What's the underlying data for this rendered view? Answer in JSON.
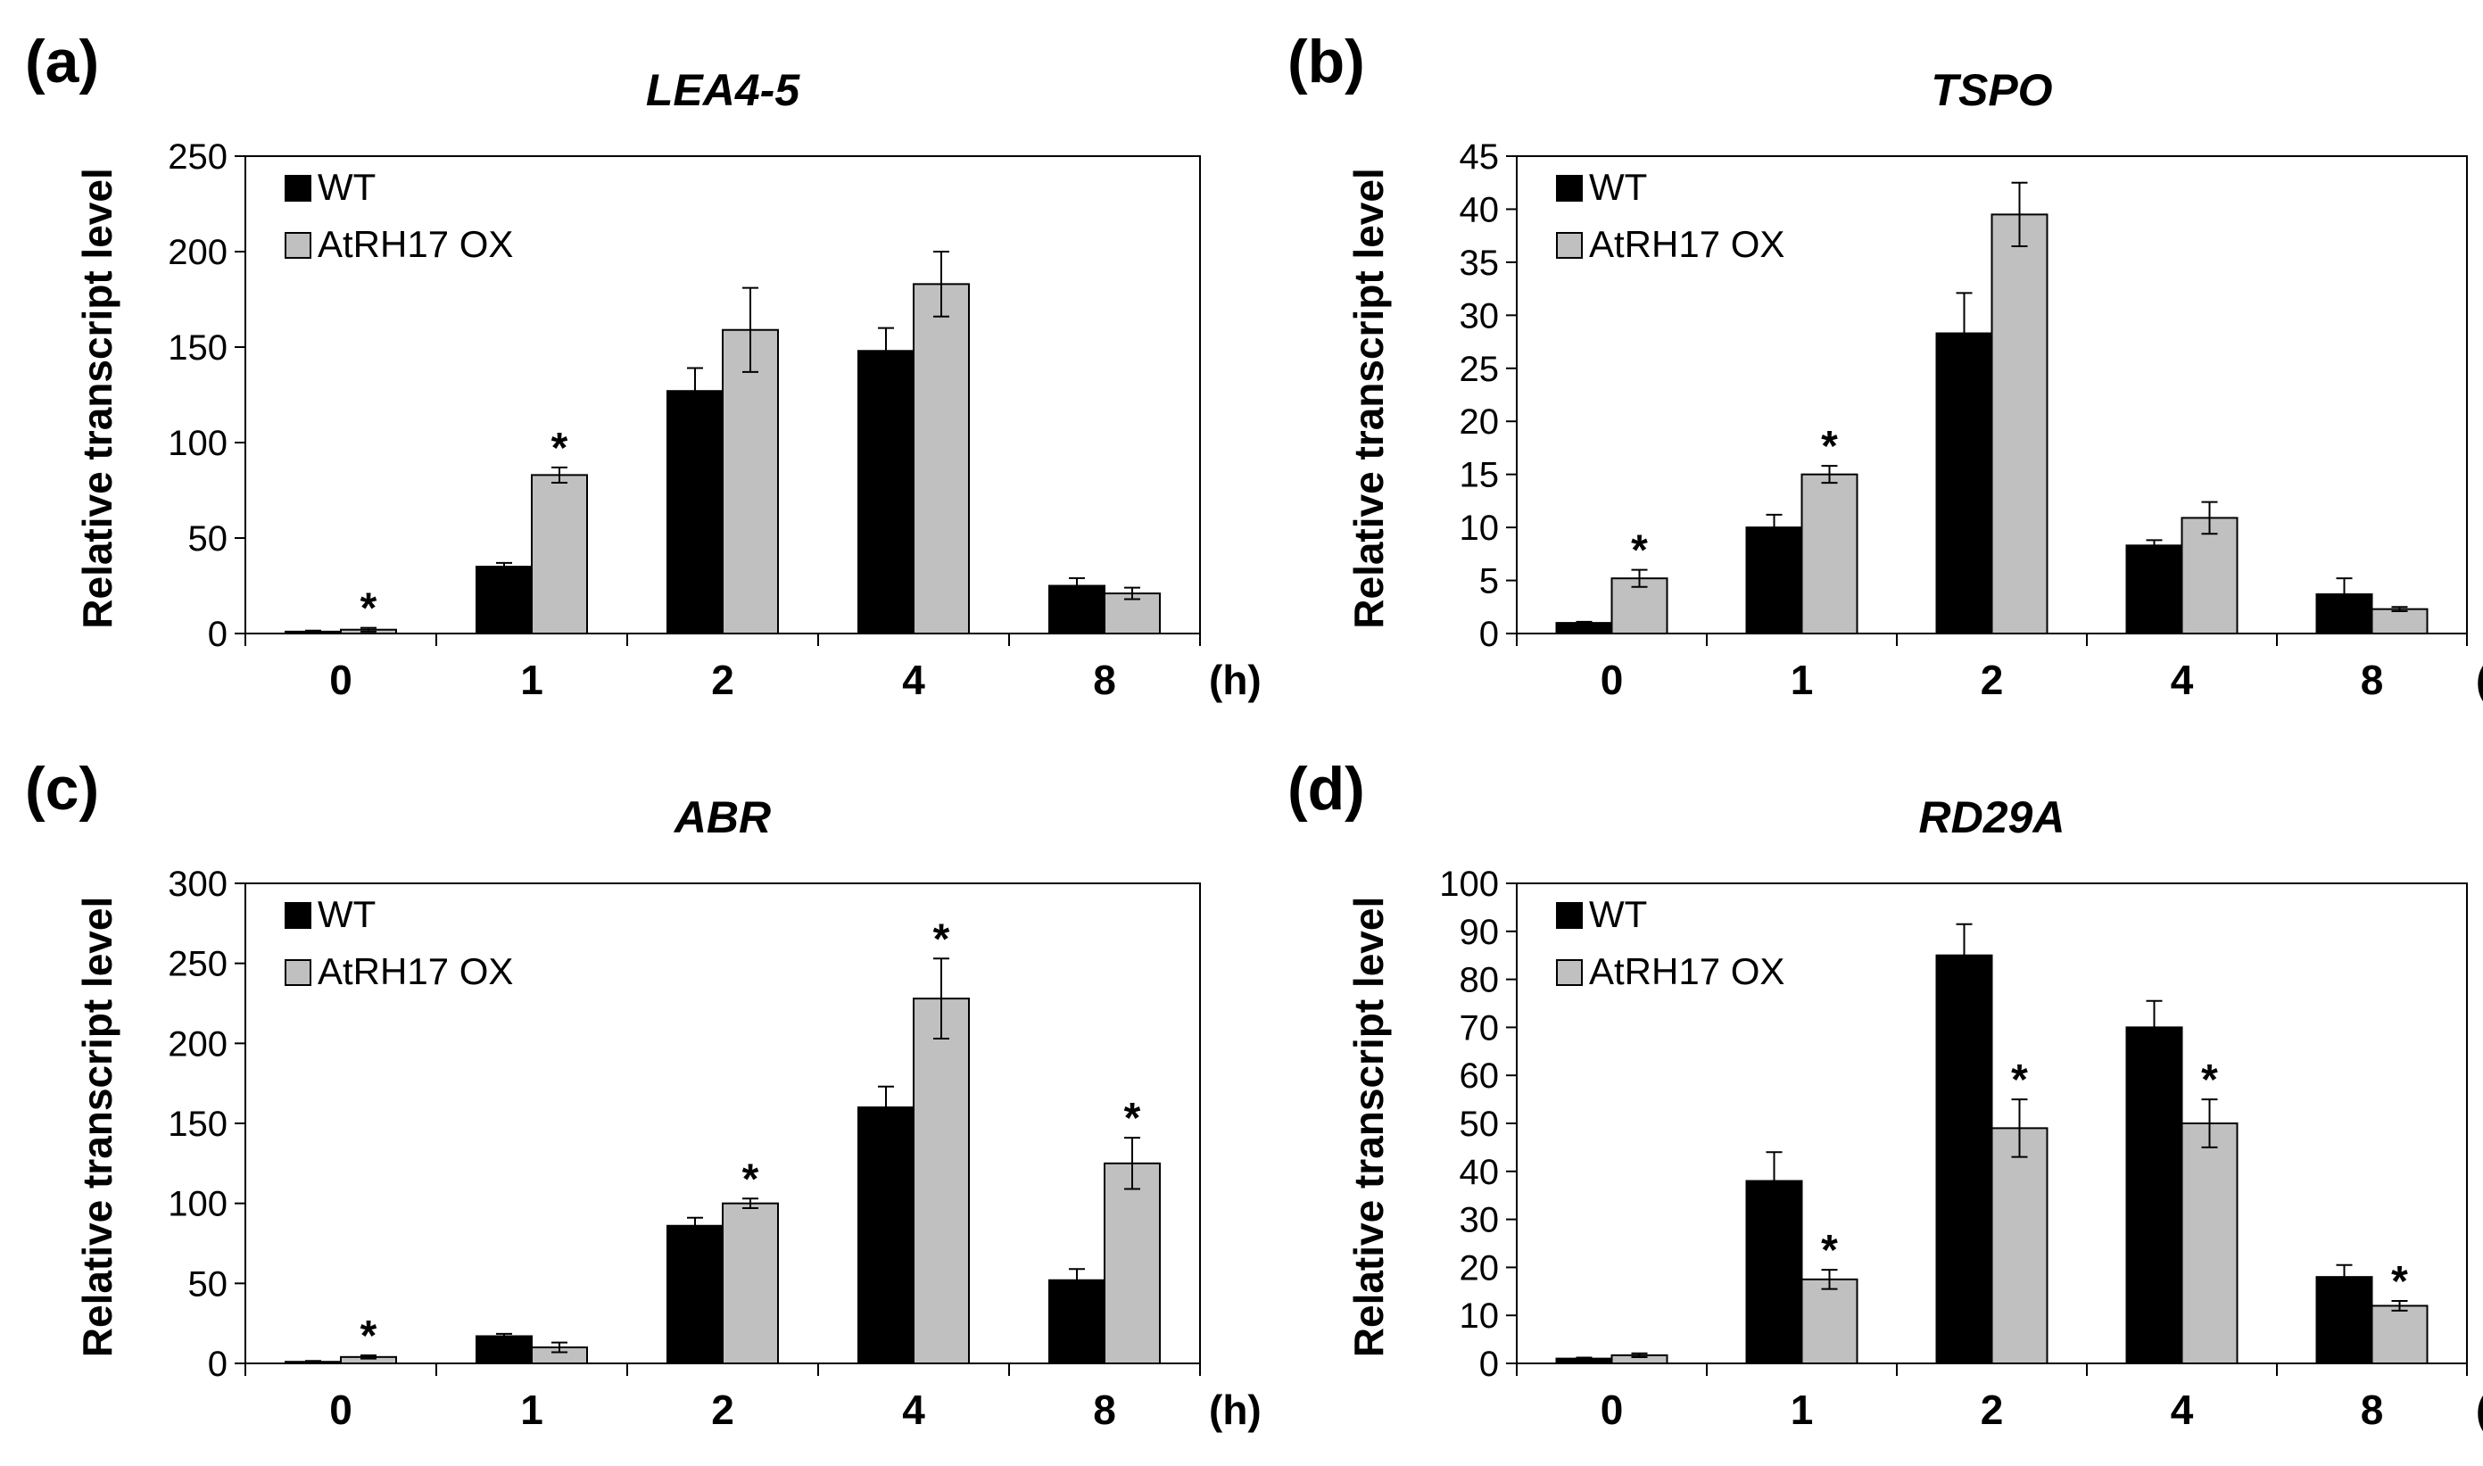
{
  "legend": {
    "wt_label": "WT",
    "ox_label": "AtRH17 OX"
  },
  "colors": {
    "wt": "#000000",
    "ox": "#c0c0c0",
    "axis": "#000000"
  },
  "chart_data": [
    {
      "type": "bar",
      "panel": "(a)",
      "title": "LEA4-5",
      "ylabel": "Relative transcript level",
      "xunit": "(h)",
      "categories": [
        "0",
        "1",
        "2",
        "4",
        "8"
      ],
      "ylim": [
        0,
        250
      ],
      "ytick_step": 50,
      "series": [
        {
          "name": "WT",
          "values": [
            1,
            35,
            127,
            148,
            25
          ],
          "errors": [
            0.5,
            2,
            12,
            12,
            4
          ]
        },
        {
          "name": "AtRH17 OX",
          "values": [
            2,
            83,
            159,
            183,
            21
          ],
          "errors": [
            1,
            4,
            22,
            17,
            3
          ]
        }
      ],
      "significance": [
        [
          false,
          true
        ],
        [
          false,
          true
        ],
        [
          false,
          false
        ],
        [
          false,
          false
        ],
        [
          false,
          false
        ]
      ]
    },
    {
      "type": "bar",
      "panel": "(b)",
      "title": "TSPO",
      "ylabel": "Relative transcript level",
      "xunit": "(h)",
      "categories": [
        "0",
        "1",
        "2",
        "4",
        "8"
      ],
      "ylim": [
        0,
        45
      ],
      "ytick_step": 5,
      "series": [
        {
          "name": "WT",
          "values": [
            1,
            10,
            28.3,
            8.3,
            3.7
          ],
          "errors": [
            0.1,
            1.2,
            3.8,
            0.5,
            1.5
          ]
        },
        {
          "name": "AtRH17 OX",
          "values": [
            5.2,
            15,
            39.5,
            10.9,
            2.3
          ],
          "errors": [
            0.8,
            0.8,
            3,
            1.5,
            0.2
          ]
        }
      ],
      "significance": [
        [
          false,
          true
        ],
        [
          false,
          true
        ],
        [
          false,
          false
        ],
        [
          false,
          false
        ],
        [
          false,
          false
        ]
      ]
    },
    {
      "type": "bar",
      "panel": "(c)",
      "title": "ABR",
      "ylabel": "Relative transcript level",
      "xunit": "(h)",
      "categories": [
        "0",
        "1",
        "2",
        "4",
        "8"
      ],
      "ylim": [
        0,
        300
      ],
      "ytick_step": 50,
      "series": [
        {
          "name": "WT",
          "values": [
            1,
            17,
            86,
            160,
            52
          ],
          "errors": [
            0.5,
            1.5,
            5,
            13,
            7
          ]
        },
        {
          "name": "AtRH17 OX",
          "values": [
            4,
            10,
            100,
            228,
            125
          ],
          "errors": [
            1,
            3,
            3,
            25,
            16
          ]
        }
      ],
      "significance": [
        [
          false,
          true
        ],
        [
          false,
          false
        ],
        [
          false,
          true
        ],
        [
          false,
          true
        ],
        [
          false,
          true
        ]
      ]
    },
    {
      "type": "bar",
      "panel": "(d)",
      "title": "RD29A",
      "ylabel": "Relative transcript level",
      "xunit": "(h)",
      "categories": [
        "0",
        "1",
        "2",
        "4",
        "8"
      ],
      "ylim": [
        0,
        100
      ],
      "ytick_step": 10,
      "series": [
        {
          "name": "WT",
          "values": [
            1,
            38,
            85,
            70,
            18
          ],
          "errors": [
            0.2,
            6,
            6.5,
            5.5,
            2.5
          ]
        },
        {
          "name": "AtRH17 OX",
          "values": [
            1.7,
            17.5,
            49,
            50,
            12
          ],
          "errors": [
            0.4,
            2,
            6,
            5,
            1
          ]
        }
      ],
      "significance": [
        [
          false,
          false
        ],
        [
          false,
          true
        ],
        [
          false,
          true
        ],
        [
          false,
          true
        ],
        [
          false,
          true
        ]
      ]
    }
  ]
}
